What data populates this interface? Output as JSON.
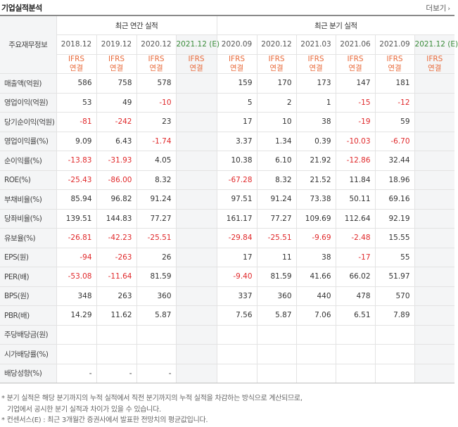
{
  "header": {
    "title": "기업실적분석",
    "more_label": "더보기",
    "more_icon": "chevron-right-icon"
  },
  "table": {
    "corner_label": "주요재무정보",
    "annual_label": "최근 연간 실적",
    "quarter_label": "최근 분기 실적",
    "periods": [
      {
        "date": "2018.12",
        "ifrs": "IFRS",
        "basis": "연결",
        "estimate": false
      },
      {
        "date": "2019.12",
        "ifrs": "IFRS",
        "basis": "연결",
        "estimate": false
      },
      {
        "date": "2020.12",
        "ifrs": "IFRS",
        "basis": "연결",
        "estimate": false
      },
      {
        "date": "2021.12 (E)",
        "ifrs": "IFRS",
        "basis": "연결",
        "estimate": true
      },
      {
        "date": "2020.09",
        "ifrs": "IFRS",
        "basis": "연결",
        "estimate": false
      },
      {
        "date": "2020.12",
        "ifrs": "IFRS",
        "basis": "연결",
        "estimate": false
      },
      {
        "date": "2021.03",
        "ifrs": "IFRS",
        "basis": "연결",
        "estimate": false
      },
      {
        "date": "2021.06",
        "ifrs": "IFRS",
        "basis": "연결",
        "estimate": false
      },
      {
        "date": "2021.09",
        "ifrs": "IFRS",
        "basis": "연결",
        "estimate": false
      },
      {
        "date": "2021.12 (E)",
        "ifrs": "IFRS",
        "basis": "연결",
        "estimate": true
      }
    ],
    "rows": [
      {
        "label": "매출액(억원)",
        "values": [
          "586",
          "758",
          "578",
          "",
          "159",
          "170",
          "173",
          "147",
          "181",
          ""
        ]
      },
      {
        "label": "영업이익(억원)",
        "values": [
          "53",
          "49",
          "-10",
          "",
          "5",
          "2",
          "1",
          "-15",
          "-12",
          ""
        ]
      },
      {
        "label": "당기순이익(억원)",
        "values": [
          "-81",
          "-242",
          "23",
          "",
          "17",
          "10",
          "38",
          "-19",
          "59",
          ""
        ]
      },
      {
        "label": "영업이익률(%)",
        "values": [
          "9.09",
          "6.43",
          "-1.74",
          "",
          "3.37",
          "1.34",
          "0.39",
          "-10.03",
          "-6.70",
          ""
        ]
      },
      {
        "label": "순이익률(%)",
        "values": [
          "-13.83",
          "-31.93",
          "4.05",
          "",
          "10.38",
          "6.10",
          "21.92",
          "-12.86",
          "32.44",
          ""
        ]
      },
      {
        "label": "ROE(%)",
        "values": [
          "-25.43",
          "-86.00",
          "8.32",
          "",
          "-67.28",
          "8.32",
          "21.52",
          "11.84",
          "18.96",
          ""
        ]
      },
      {
        "label": "부채비율(%)",
        "values": [
          "85.94",
          "96.82",
          "91.24",
          "",
          "97.51",
          "91.24",
          "73.38",
          "50.11",
          "69.16",
          ""
        ]
      },
      {
        "label": "당좌비율(%)",
        "values": [
          "139.51",
          "144.83",
          "77.27",
          "",
          "161.17",
          "77.27",
          "109.69",
          "112.64",
          "92.19",
          ""
        ]
      },
      {
        "label": "유보율(%)",
        "values": [
          "-26.81",
          "-42.23",
          "-25.51",
          "",
          "-29.84",
          "-25.51",
          "-9.69",
          "-2.48",
          "15.55",
          ""
        ]
      },
      {
        "label": "EPS(원)",
        "values": [
          "-94",
          "-263",
          "26",
          "",
          "17",
          "11",
          "38",
          "-17",
          "55",
          ""
        ]
      },
      {
        "label": "PER(배)",
        "values": [
          "-53.08",
          "-11.64",
          "81.59",
          "",
          "-9.40",
          "81.59",
          "41.66",
          "66.02",
          "51.97",
          ""
        ]
      },
      {
        "label": "BPS(원)",
        "values": [
          "348",
          "263",
          "360",
          "",
          "337",
          "360",
          "440",
          "478",
          "570",
          ""
        ]
      },
      {
        "label": "PBR(배)",
        "values": [
          "14.29",
          "11.62",
          "5.87",
          "",
          "7.56",
          "5.87",
          "7.06",
          "6.51",
          "7.89",
          ""
        ]
      },
      {
        "label": "주당배당금(원)",
        "values": [
          "",
          "",
          "",
          "",
          "",
          "",
          "",
          "",
          "",
          ""
        ]
      },
      {
        "label": "시가배당률(%)",
        "values": [
          "",
          "",
          "",
          "",
          "",
          "",
          "",
          "",
          "",
          ""
        ]
      },
      {
        "label": "배당성향(%)",
        "values": [
          "-",
          "-",
          "-",
          "",
          "",
          "",
          "",
          "",
          "",
          ""
        ]
      }
    ]
  },
  "notes": [
    "* 분기 실적은 해당 분기까지의 누적 실적에서 직전 분기까지의 누적 실적을 차감하는 방식으로 계산되므로,",
    "기업에서 공시한 분기 실적과 차이가 있을 수 있습니다.",
    "* 컨센서스(E) : 최근 3개월간 증권사에서 발표한 전망치의 평균값입니다."
  ],
  "colors": {
    "negative": "#e0282a",
    "ifrs": "#e86a3a",
    "estimate_header": "#3a8c3a",
    "label_bg": "#f4f5f6"
  }
}
